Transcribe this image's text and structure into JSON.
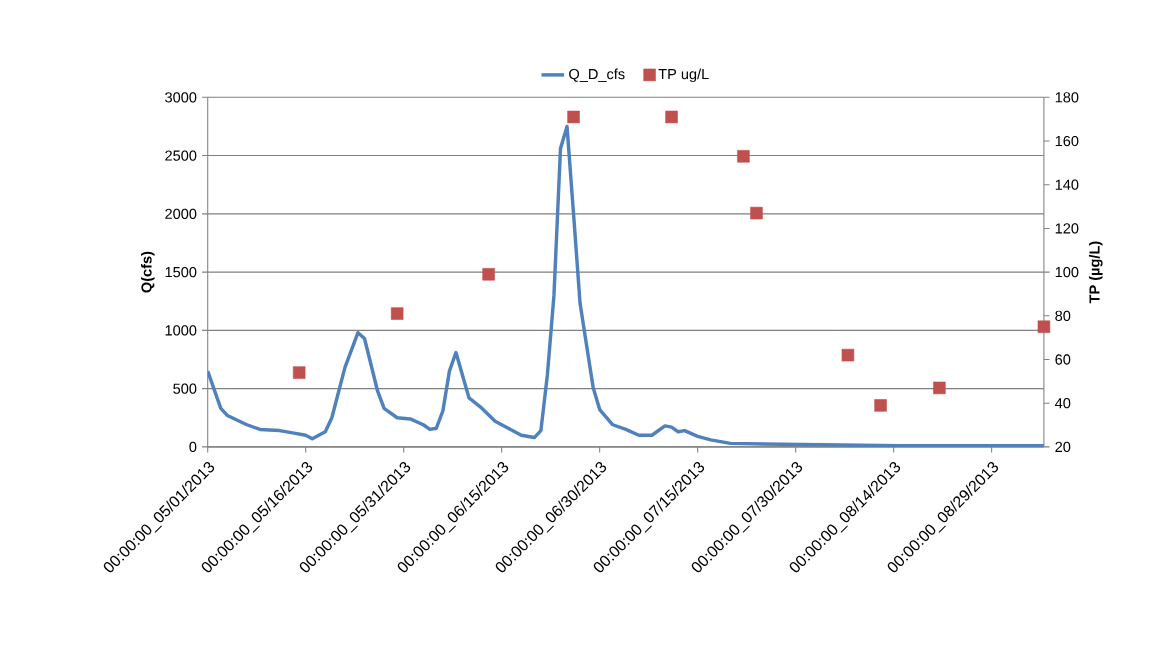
{
  "chart_data": {
    "type": "line",
    "ylabel": "Q(cfs)",
    "y2label": "TP (µg/L)",
    "xlim": [
      "2013-05-01",
      "2013-09-06"
    ],
    "xticks": [
      {
        "value": "2013-05-01",
        "label": "00:00:00_05/01/2013"
      },
      {
        "value": "2013-05-16",
        "label": "00:00:00_05/16/2013"
      },
      {
        "value": "2013-05-31",
        "label": "00:00:00_05/31/2013"
      },
      {
        "value": "2013-06-15",
        "label": "00:00:00_06/15/2013"
      },
      {
        "value": "2013-06-30",
        "label": "00:00:00_06/30/2013"
      },
      {
        "value": "2013-07-15",
        "label": "00:00:00_07/15/2013"
      },
      {
        "value": "2013-07-30",
        "label": "00:00:00_07/30/2013"
      },
      {
        "value": "2013-08-14",
        "label": "00:00:00_08/14/2013"
      },
      {
        "value": "2013-08-29",
        "label": "00:00:00_08/29/2013"
      }
    ],
    "ylim": [
      0,
      3000
    ],
    "yticks": [
      0,
      500,
      1000,
      1500,
      2000,
      2500,
      3000
    ],
    "y2lim": [
      20,
      180
    ],
    "y2ticks": [
      20,
      40,
      60,
      80,
      100,
      120,
      140,
      160,
      180
    ],
    "grid": "y",
    "legend": "top",
    "series": [
      {
        "name": "Q_D_cfs",
        "marker": "none",
        "color": "#4f81bd",
        "x": [
          "2013-05-01",
          "2013-05-03",
          "2013-05-04",
          "2013-05-07",
          "2013-05-09",
          "2013-05-12",
          "2013-05-14",
          "2013-05-16",
          "2013-05-17",
          "2013-05-19",
          "2013-05-20",
          "2013-05-22",
          "2013-05-24",
          "2013-05-25",
          "2013-05-27",
          "2013-05-28",
          "2013-05-30",
          "2013-06-01",
          "2013-06-03",
          "2013-06-04",
          "2013-06-05",
          "2013-06-06",
          "2013-06-07",
          "2013-06-08",
          "2013-06-10",
          "2013-06-12",
          "2013-06-14",
          "2013-06-16",
          "2013-06-18",
          "2013-06-20",
          "2013-06-21",
          "2013-06-22",
          "2013-06-23",
          "2013-06-24",
          "2013-06-25",
          "2013-06-26",
          "2013-06-27",
          "2013-06-28",
          "2013-06-29",
          "2013-06-30",
          "2013-07-02",
          "2013-07-04",
          "2013-07-06",
          "2013-07-08",
          "2013-07-10",
          "2013-07-11",
          "2013-07-12",
          "2013-07-13",
          "2013-07-15",
          "2013-07-17",
          "2013-07-20",
          "2013-07-31",
          "2013-08-15",
          "2013-09-06"
        ],
        "values": [
          650,
          330,
          270,
          190,
          150,
          140,
          120,
          100,
          70,
          130,
          250,
          680,
          980,
          930,
          480,
          330,
          250,
          240,
          190,
          150,
          160,
          310,
          650,
          810,
          420,
          330,
          220,
          160,
          100,
          80,
          140,
          620,
          1300,
          2560,
          2750,
          2000,
          1230,
          870,
          510,
          320,
          190,
          150,
          100,
          100,
          180,
          170,
          130,
          140,
          90,
          60,
          30,
          20,
          10,
          10
        ]
      },
      {
        "name": "TP ug/L",
        "type": "scatter",
        "marker": "square",
        "axis": "y2",
        "color": "#c0504d",
        "x": [
          "2013-05-15",
          "2013-05-30",
          "2013-06-13",
          "2013-06-26",
          "2013-07-11",
          "2013-07-22",
          "2013-07-24",
          "2013-08-07",
          "2013-08-12",
          "2013-08-21",
          "2013-09-06"
        ],
        "values": [
          54,
          81,
          99,
          171,
          171,
          153,
          127,
          62,
          39,
          47,
          75
        ]
      }
    ]
  }
}
